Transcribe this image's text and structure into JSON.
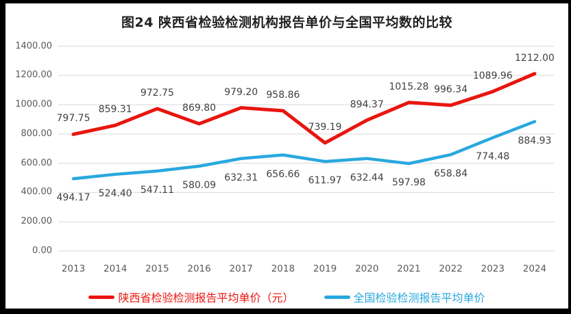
{
  "title": "图24 陕西省检验检测机构报告单价与全国平均数的比较",
  "frame": {
    "border_color": "#000000",
    "background_color": "#ffffff"
  },
  "chart_data": {
    "type": "line",
    "title": "图24 陕西省检验检测机构报告单价与全国平均数的比较",
    "categories": [
      "2013",
      "2014",
      "2015",
      "2016",
      "2017",
      "2018",
      "2019",
      "2020",
      "2021",
      "2022",
      "2023",
      "2024"
    ],
    "series": [
      {
        "name": "陕西省检验检测报告平均单价（元）",
        "color": "#e9150f",
        "label_position": "above",
        "values": [
          797.75,
          859.31,
          972.75,
          869.8,
          979.2,
          958.86,
          739.19,
          894.37,
          1015.28,
          996.34,
          1089.96,
          1212.0
        ]
      },
      {
        "name": "全国检验检测报告平均单价",
        "color": "#29a8de",
        "label_position": "below",
        "values": [
          494.17,
          524.4,
          547.11,
          580.09,
          632.31,
          656.66,
          611.97,
          632.44,
          597.98,
          658.84,
          774.48,
          884.93
        ]
      }
    ],
    "ylim": [
      0,
      1400
    ],
    "ytick_step": 200,
    "ytick_labels": [
      "0.00",
      "200.00",
      "400.00",
      "600.00",
      "800.00",
      "1000.00",
      "1200.00",
      "1400.00"
    ],
    "grid": true,
    "grid_color": "#d9d9d9",
    "tick_label_color": "#595959",
    "data_label_color": "#3f3f3f",
    "legend_position": "bottom"
  }
}
